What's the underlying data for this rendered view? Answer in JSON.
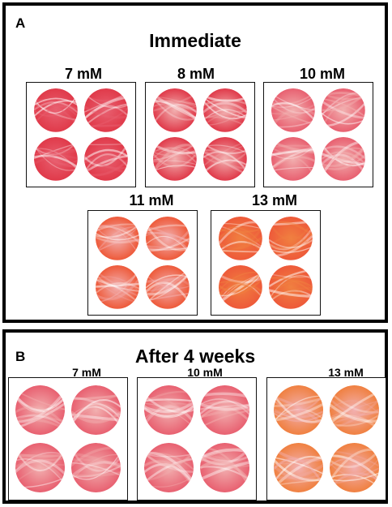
{
  "panel_a": {
    "letter": "A",
    "title": "Immediate",
    "groups": [
      {
        "label": "7 mM"
      },
      {
        "label": "8 mM"
      },
      {
        "label": "10 mM"
      },
      {
        "label": "11 mM"
      },
      {
        "label": "13 mM"
      }
    ]
  },
  "panel_b": {
    "letter": "B",
    "title": "After 4 weeks",
    "groups": [
      {
        "label": "7 mM"
      },
      {
        "label": "10 mM"
      },
      {
        "label": "13 mM"
      }
    ]
  },
  "colors": {
    "deep_red": "#e03a4a",
    "pink_red": "#e86070",
    "orange_red": "#ee5a3a",
    "light_pink": "#f2b0b0",
    "orange": "#f08040"
  }
}
